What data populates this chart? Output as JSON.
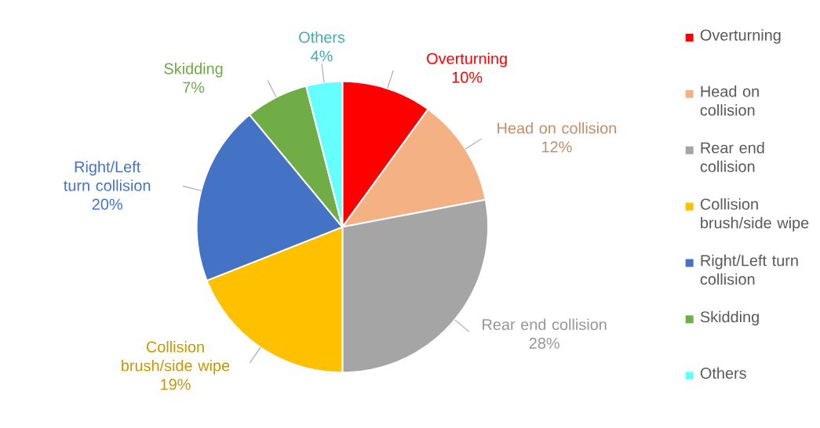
{
  "chart_data": {
    "type": "pie",
    "categories": [
      "Overturning",
      "Head on collision",
      "Rear end collision",
      "Collision brush/side wipe",
      "Right/Left turn collision",
      "Skidding",
      "Others"
    ],
    "values": [
      10,
      12,
      28,
      19,
      20,
      7,
      4
    ],
    "value_labels": [
      "10%",
      "12%",
      "28%",
      "19%",
      "20%",
      "7%",
      "4%"
    ],
    "colors": [
      "#ff0000",
      "#f4b183",
      "#a5a5a5",
      "#ffc000",
      "#4472c4",
      "#70ad47",
      "#66ffff"
    ],
    "legend": "right"
  }
}
